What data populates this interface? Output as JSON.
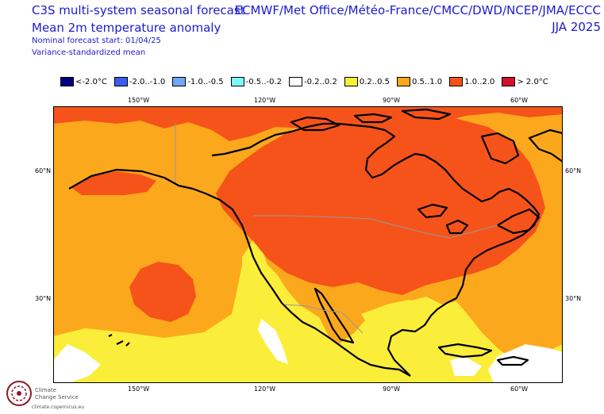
{
  "header": {
    "title_line1": "C3S multi-system seasonal forecast",
    "title_line2": "Mean 2m temperature anomaly",
    "nominal_start": "Nominal forecast start: 01/04/25",
    "variance": "Variance-standardized mean",
    "centers": "ECMWF/Met Office/Météo-France/CMCC/DWD/NCEP/JMA/ECCC",
    "season": "JJA 2025"
  },
  "legend": [
    {
      "label": "<-2.0°C",
      "color": "#000080"
    },
    {
      "label": "-2.0..-1.0",
      "color": "#3a5ef0"
    },
    {
      "label": "-1.0..-0.5",
      "color": "#6fa8f5"
    },
    {
      "label": "-0.5..-0.2",
      "color": "#7ff5f5"
    },
    {
      "label": "-0.2..0.2",
      "color": "#ffffff"
    },
    {
      "label": "0.2..0.5",
      "color": "#fbee3a"
    },
    {
      "label": "0.5..1.0",
      "color": "#fba81c"
    },
    {
      "label": "1.0..2.0",
      "color": "#f5531a"
    },
    {
      "label": "> 2.0°C",
      "color": "#d4102c"
    }
  ],
  "axes": {
    "lon_labels": [
      "150°W",
      "120°W",
      "90°W",
      "60°W"
    ],
    "lat_labels": [
      "60°N",
      "30°N"
    ]
  },
  "logo": {
    "name_line1": "Climate",
    "name_line2": "Change Service",
    "url": "climate.copernicus.eu"
  }
}
